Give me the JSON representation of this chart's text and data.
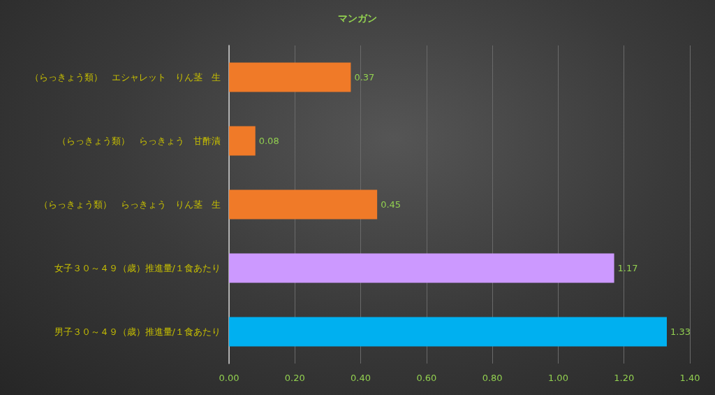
{
  "chart_data": {
    "type": "bar",
    "orientation": "horizontal",
    "title": "マンガン",
    "categories": [
      "（らっきょう類）　エシャレット　りん茎　生",
      "（らっきょう類）　らっきょう　甘酢漬",
      "（らっきょう類）　らっきょう　りん茎　生",
      "女子３０～４９（歳）推進量/１食あたり",
      "男子３０～４９（歳）推進量/１食あたり"
    ],
    "values": [
      0.37,
      0.08,
      0.45,
      1.17,
      1.33
    ],
    "colors": [
      "#f07a28",
      "#f07a28",
      "#f07a28",
      "#cc99ff",
      "#00b0f0"
    ],
    "xlim": [
      0,
      1.4
    ],
    "xticks": [
      {
        "value": 0,
        "label": "0.00"
      },
      {
        "value": 0.2,
        "label": "0.20"
      },
      {
        "value": 0.4,
        "label": "0.40"
      },
      {
        "value": 0.6,
        "label": "0.60"
      },
      {
        "value": 0.8,
        "label": "0.80"
      },
      {
        "value": 1,
        "label": "1.00"
      },
      {
        "value": 1.2,
        "label": "1.20"
      },
      {
        "value": 1.4,
        "label": "1.40"
      }
    ],
    "grid": "x",
    "data_labels": true
  }
}
